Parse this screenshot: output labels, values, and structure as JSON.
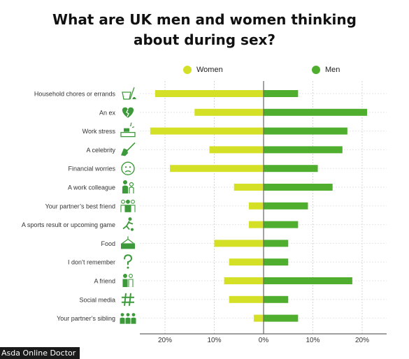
{
  "page": {
    "title_line1": "What are UK men and women thinking",
    "title_line2": "about during sex?",
    "credit": "Asda Online Doctor"
  },
  "colors": {
    "women": "#d4e026",
    "men": "#4fae2e",
    "axis": "#666666",
    "grid": "#d6d6d6",
    "icon": "#3d9a3a"
  },
  "chart_data": {
    "type": "bar",
    "orientation": "horizontal",
    "layout": "diverging",
    "title": "What are UK men and women thinking about during sex?",
    "xlim": [
      -24,
      24
    ],
    "x_ticks": [
      -20,
      -10,
      0,
      10,
      20
    ],
    "x_tick_labels": [
      "20%",
      "10%",
      "0%",
      "10%",
      "20%"
    ],
    "grid": true,
    "legend": {
      "position": "top",
      "entries": [
        "Women",
        "Men"
      ]
    },
    "categories": [
      {
        "label": "Household chores or errands",
        "icon": "bucket-mop-icon"
      },
      {
        "label": "An ex",
        "icon": "broken-heart-icon"
      },
      {
        "label": "Work stress",
        "icon": "desk-stress-icon"
      },
      {
        "label": "A celebrity",
        "icon": "guitar-icon"
      },
      {
        "label": "Financial worries",
        "icon": "worried-face-icon"
      },
      {
        "label": "A work colleague",
        "icon": "colleagues-icon"
      },
      {
        "label": "Your partner’s best friend",
        "icon": "friends-group-icon"
      },
      {
        "label": "A sports result or upcoming game",
        "icon": "footballer-icon"
      },
      {
        "label": "Food",
        "icon": "cake-icon"
      },
      {
        "label": "I don’t remember",
        "icon": "question-mark-icon"
      },
      {
        "label": "A friend",
        "icon": "two-people-icon"
      },
      {
        "label": "Social media",
        "icon": "hashtag-icon"
      },
      {
        "label": "Your partner’s sibling",
        "icon": "family-icon"
      }
    ],
    "series": [
      {
        "name": "Women",
        "color": "#d4e026",
        "values": [
          22,
          14,
          23,
          11,
          19,
          6,
          3,
          3,
          10,
          7,
          8,
          7,
          2
        ]
      },
      {
        "name": "Men",
        "color": "#4fae2e",
        "values": [
          7,
          21,
          17,
          16,
          11,
          14,
          9,
          7,
          5,
          5,
          18,
          5,
          7
        ]
      }
    ]
  }
}
